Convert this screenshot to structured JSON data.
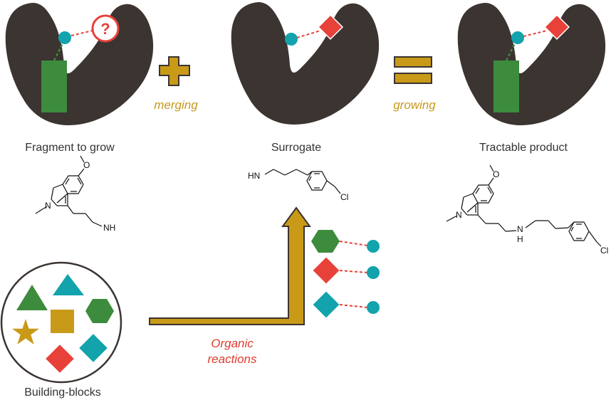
{
  "labels": {
    "fragment": "Fragment to grow",
    "surrogate": "Surrogate",
    "product": "Tractable product",
    "building_blocks": "Building-blocks",
    "merging": "merging",
    "growing": "growing",
    "organic_1": "Organic",
    "organic_2": "reactions",
    "question": "?"
  },
  "chem": {
    "nh": "NH",
    "hn": "HN",
    "n": "N",
    "h": "H",
    "cl": "Cl"
  },
  "colors": {
    "pocket": "#3b3431",
    "green": "#3d8b3d",
    "teal": "#12a3ac",
    "red": "#e8413a",
    "gold": "#c99a18",
    "gold_text": "#c79a1e",
    "red_text": "#e03a2f"
  }
}
